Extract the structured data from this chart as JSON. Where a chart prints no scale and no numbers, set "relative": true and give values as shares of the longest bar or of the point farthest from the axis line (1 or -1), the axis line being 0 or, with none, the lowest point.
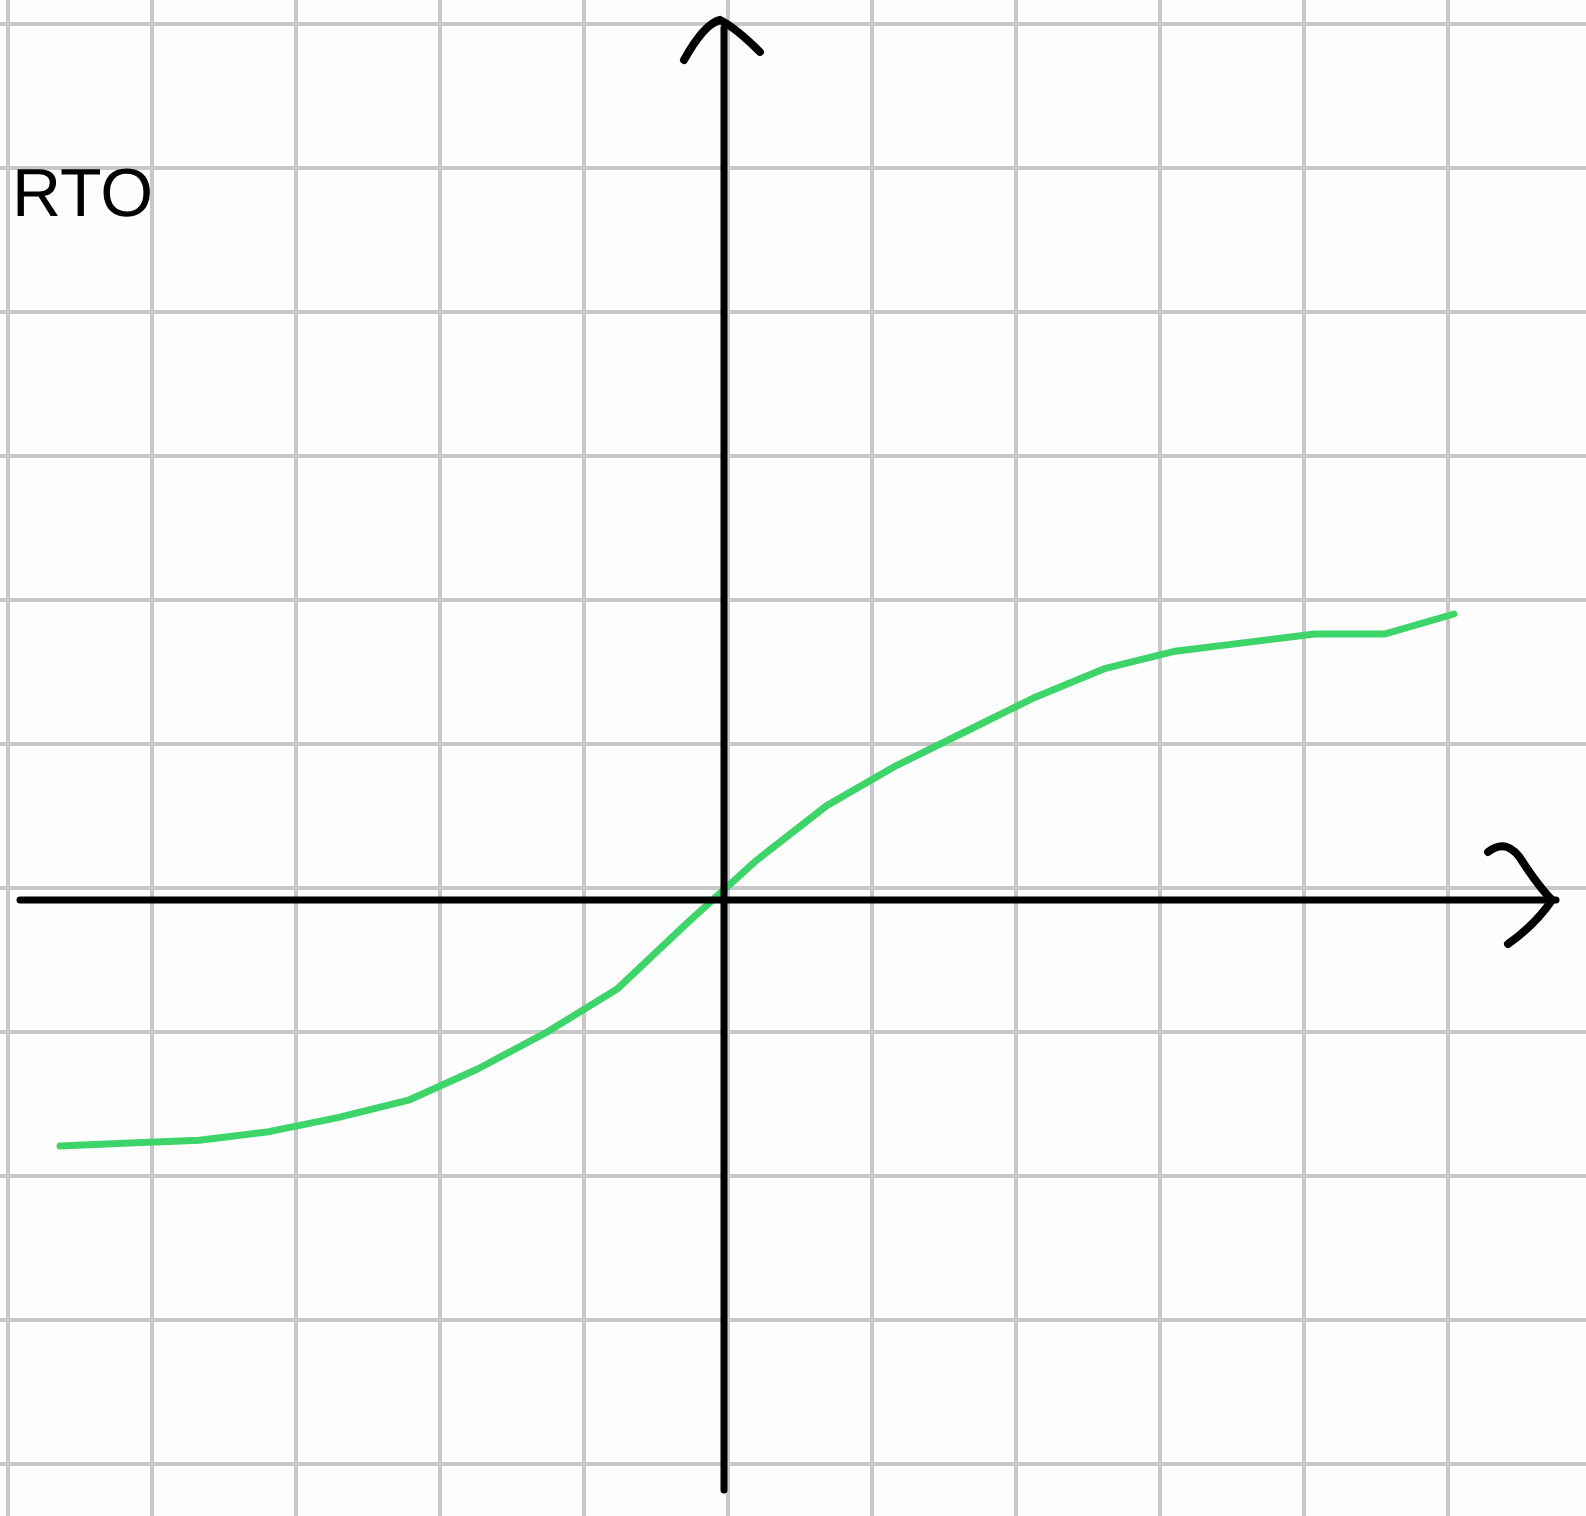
{
  "chart_data": {
    "type": "line",
    "relative": true,
    "annotations": [
      "RTO"
    ],
    "grid": true,
    "marker": "none",
    "line_style": "solid",
    "categories": [
      null,
      null,
      null,
      null,
      null,
      null,
      null,
      null,
      null,
      null,
      null,
      null,
      null,
      null,
      null,
      null,
      null,
      null,
      null,
      null,
      null
    ],
    "series": [
      {
        "color": "#3dd46a",
        "values": [
          -0.86,
          -0.85,
          -0.84,
          -0.81,
          -0.76,
          -0.7,
          -0.59,
          -0.46,
          -0.31,
          -0.08,
          0.14,
          0.33,
          0.47,
          0.59,
          0.71,
          0.81,
          0.87,
          0.9,
          0.93,
          0.93,
          1
        ]
      }
    ]
  }
}
